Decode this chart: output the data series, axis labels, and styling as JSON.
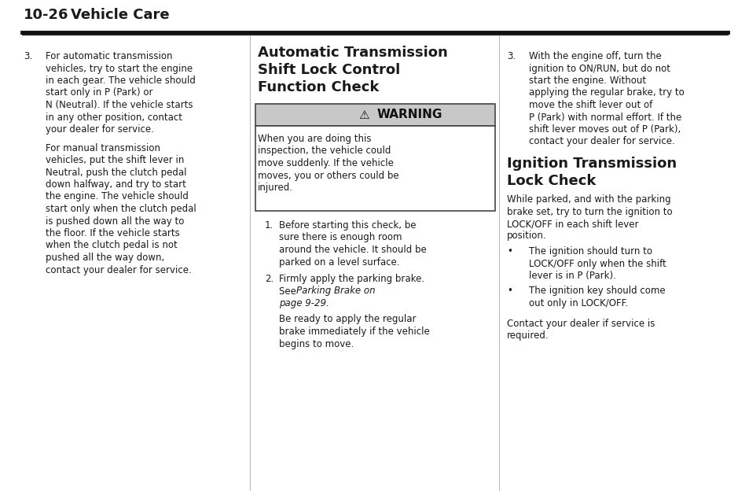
{
  "bg_color": "#ffffff",
  "text_color": "#1a1a1a",
  "header_text": "10-26",
  "header_text2": "Vehicle Care",
  "col1_content": {
    "item_num": "3.",
    "para1_lines": [
      "For automatic transmission",
      "vehicles, try to start the engine",
      "in each gear. The vehicle should",
      "start only in P (Park) or",
      "N (Neutral). If the vehicle starts",
      "in any other position, contact",
      "your dealer for service."
    ],
    "para2_lines": [
      "For manual transmission",
      "vehicles, put the shift lever in",
      "Neutral, push the clutch pedal",
      "down halfway, and try to start",
      "the engine. The vehicle should",
      "start only when the clutch pedal",
      "is pushed down all the way to",
      "the floor. If the vehicle starts",
      "when the clutch pedal is not",
      "pushed all the way down,",
      "contact your dealer for service."
    ]
  },
  "col2_content": {
    "section_title_lines": [
      "Automatic Transmission",
      "Shift Lock Control",
      "Function Check"
    ],
    "warning_header": "WARNING",
    "warning_body_lines": [
      "When you are doing this",
      "inspection, the vehicle could",
      "move suddenly. If the vehicle",
      "moves, you or others could be",
      "injured."
    ],
    "item1_num": "1.",
    "item1_lines": [
      "Before starting this check, be",
      "sure there is enough room",
      "around the vehicle. It should be",
      "parked on a level surface."
    ],
    "item2_num": "2.",
    "item2_lines": [
      "Firmly apply the parking brake.",
      "See Parking Brake on",
      "page 9-29."
    ],
    "item2b_lines": [
      "Be ready to apply the regular",
      "brake immediately if the vehicle",
      "begins to move."
    ]
  },
  "col3_content": {
    "item_num": "3.",
    "para1_lines": [
      "With the engine off, turn the",
      "ignition to ON/RUN, but do not",
      "start the engine. Without",
      "applying the regular brake, try to",
      "move the shift lever out of",
      "P (Park) with normal effort. If the",
      "shift lever moves out of P (Park),",
      "contact your dealer for service."
    ],
    "section_title_lines": [
      "Ignition Transmission",
      "Lock Check"
    ],
    "section_body_lines": [
      "While parked, and with the parking",
      "brake set, try to turn the ignition to",
      "LOCK/OFF in each shift lever",
      "position."
    ],
    "bullet1_lines": [
      "The ignition should turn to",
      "LOCK/OFF only when the shift",
      "lever is in P (Park)."
    ],
    "bullet2_lines": [
      "The ignition key should come",
      "out only in LOCK/OFF."
    ],
    "footer_lines": [
      "Contact your dealer if service is",
      "required."
    ]
  }
}
